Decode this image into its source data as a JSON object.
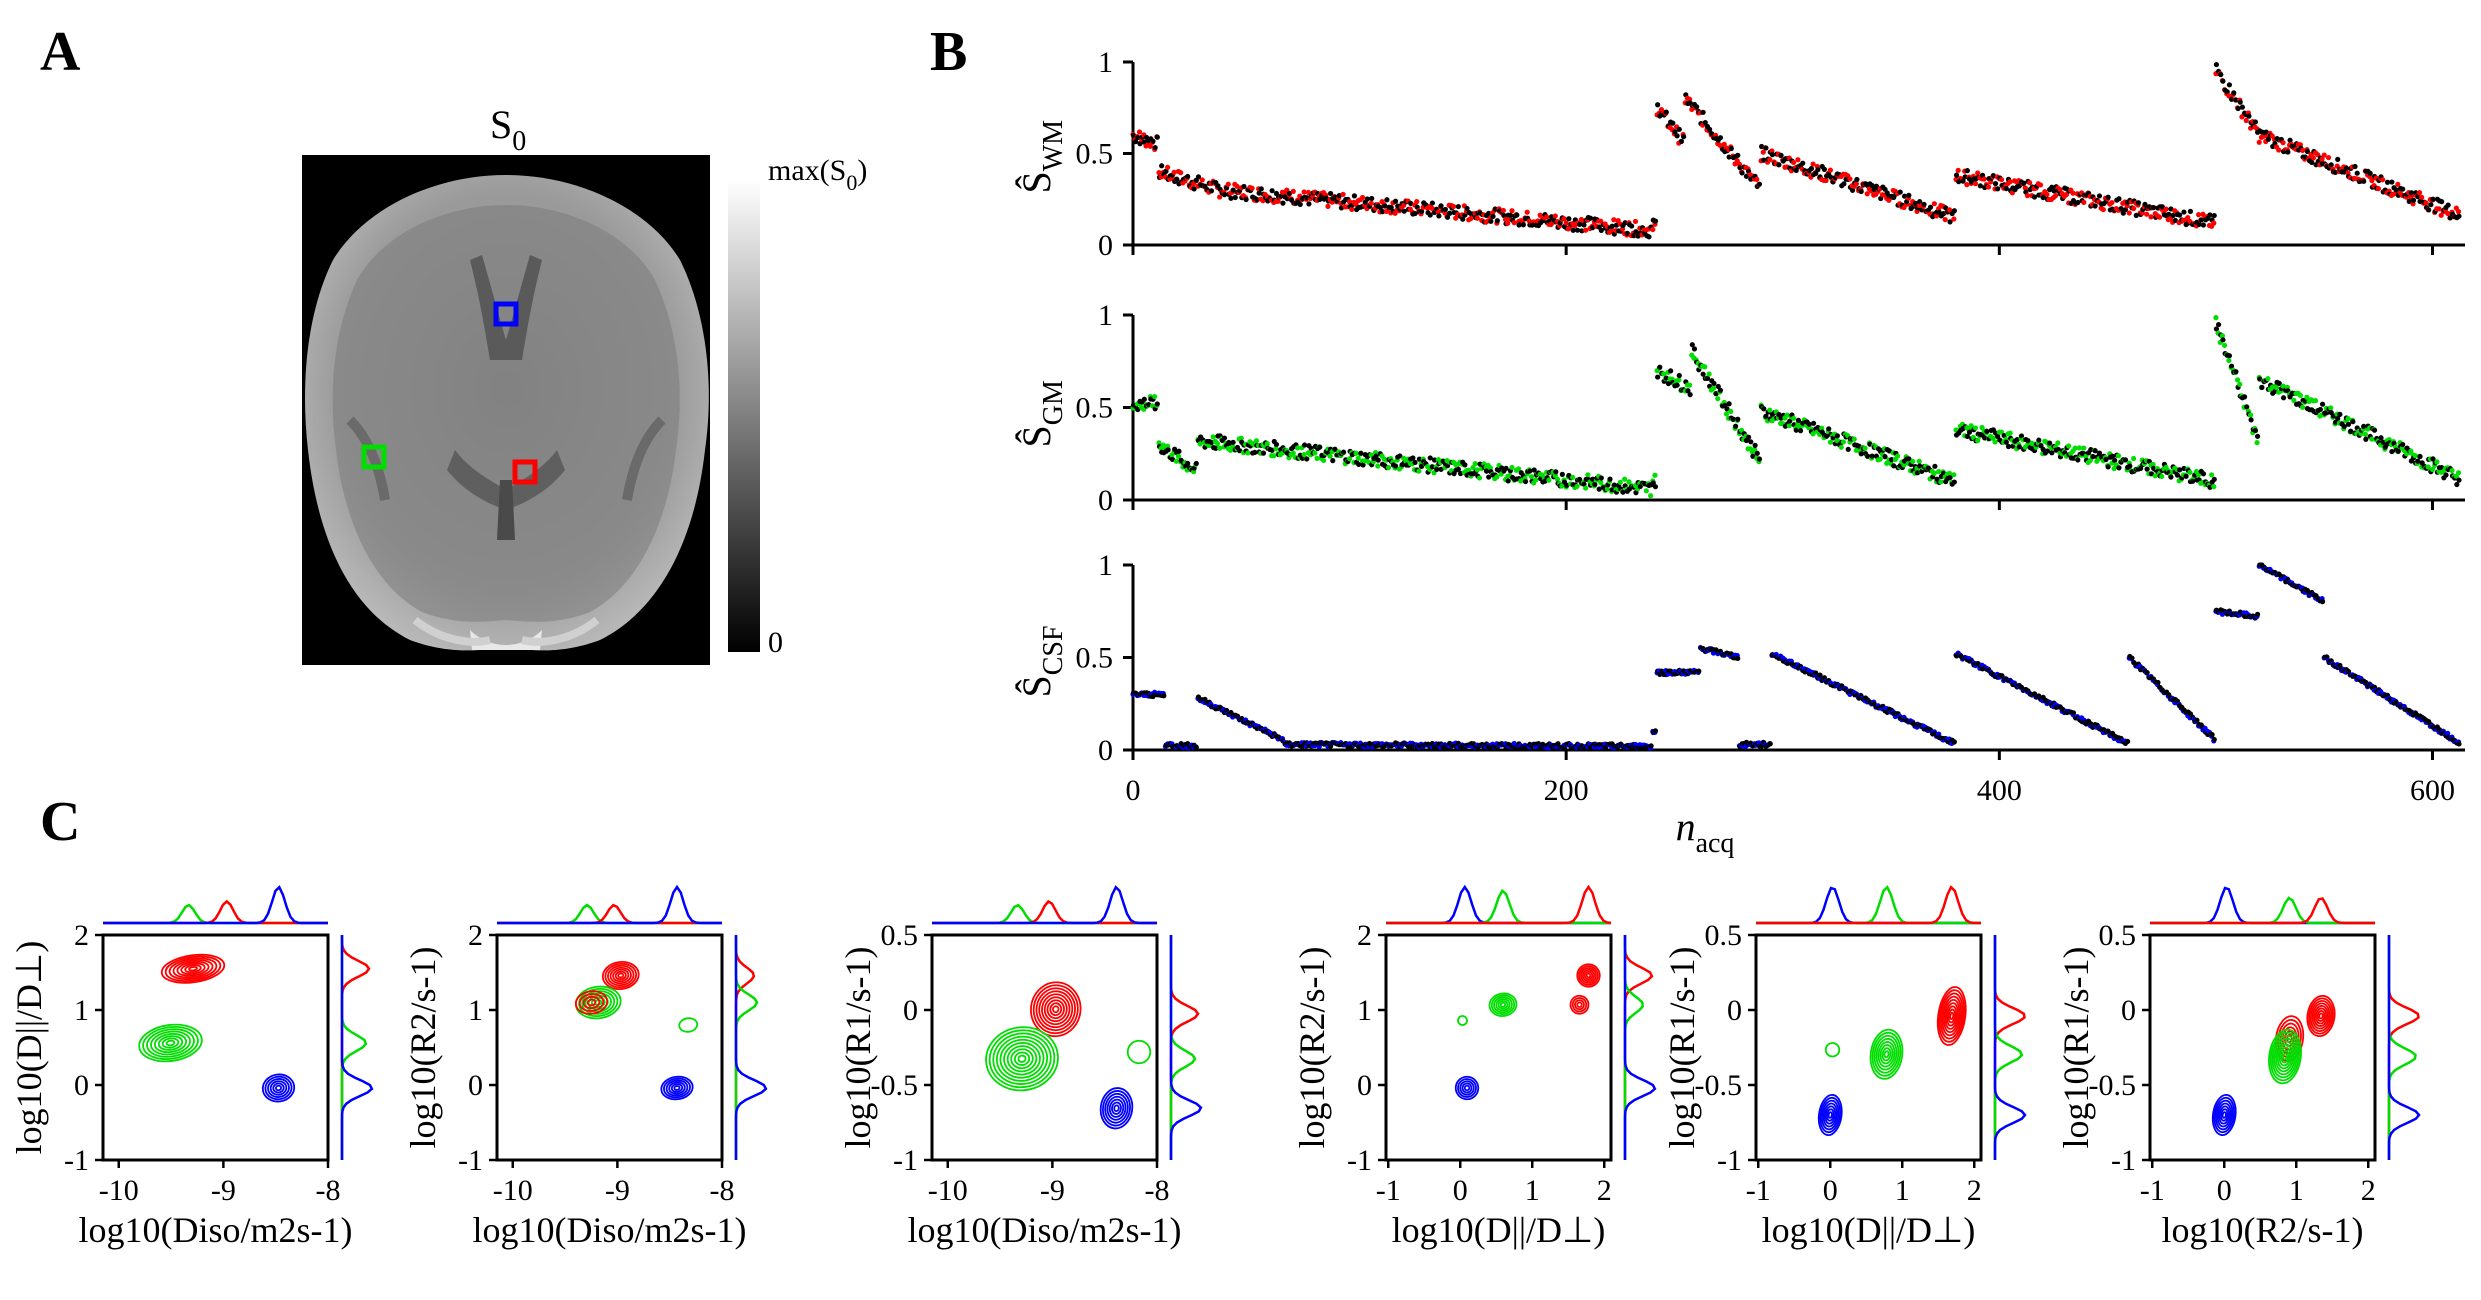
{
  "panel_labels": {
    "a": "A",
    "b": "B",
    "c": "C"
  },
  "panel_a": {
    "title": "S",
    "title_sub": "0",
    "colorbar_max": "max(S",
    "colorbar_max_sub": "0",
    "colorbar_max_close": ")",
    "colorbar_min": "0",
    "roi_colors": {
      "blue": "#0000ff",
      "green": "#00dd00",
      "red": "#ff0000"
    }
  },
  "panel_b": {
    "xlabel": "n",
    "xlabel_sub": "acq",
    "xticks": [
      "0",
      "200",
      "400",
      "600"
    ],
    "yticks": [
      "0",
      "0.5",
      "1"
    ],
    "rows": [
      {
        "ylabel": "Ŝ",
        "ylabel_sub": "WM",
        "color": "#ff0000"
      },
      {
        "ylabel": "Ŝ",
        "ylabel_sub": "GM",
        "color": "#00dd00"
      },
      {
        "ylabel": "Ŝ",
        "ylabel_sub": "CSF",
        "color": "#0000ff"
      }
    ]
  },
  "panel_c": {
    "colors": {
      "red": "#ff0000",
      "green": "#00dd00",
      "blue": "#0000ff"
    },
    "plots": [
      {
        "ylabel": "log10(D||/D⊥)",
        "xlabel": "log10(Diso/m2s-1)",
        "xticks": [
          "-10",
          "-9",
          "-8"
        ],
        "yticks": [
          "2",
          "1",
          "0",
          "-1"
        ]
      },
      {
        "ylabel": "log10(R2/s-1)",
        "xlabel": "log10(Diso/m2s-1)",
        "xticks": [
          "-10",
          "-9",
          "-8"
        ],
        "yticks": [
          "2",
          "1",
          "0",
          "-1"
        ]
      },
      {
        "ylabel": "log10(R1/s-1)",
        "xlabel": "log10(Diso/m2s-1)",
        "xticks": [
          "-10",
          "-9",
          "-8"
        ],
        "yticks": [
          "0.5",
          "0",
          "-0.5",
          "-1"
        ]
      },
      {
        "ylabel": "log10(R2/s-1)",
        "xlabel": "log10(D||/D⊥)",
        "xticks": [
          "-1",
          "0",
          "1",
          "2"
        ],
        "yticks": [
          "2",
          "1",
          "0",
          "-1"
        ]
      },
      {
        "ylabel": "log10(R1/s-1)",
        "xlabel": "log10(D||/D⊥)",
        "xticks": [
          "-1",
          "0",
          "1",
          "2"
        ],
        "yticks": [
          "0.5",
          "0",
          "-0.5",
          "-1"
        ]
      },
      {
        "ylabel": "log10(R1/s-1)",
        "xlabel": "log10(R2/s-1)",
        "xticks": [
          "-1",
          "0",
          "1",
          "2"
        ],
        "yticks": [
          "0.5",
          "0",
          "-0.5",
          "-1"
        ]
      }
    ]
  }
}
